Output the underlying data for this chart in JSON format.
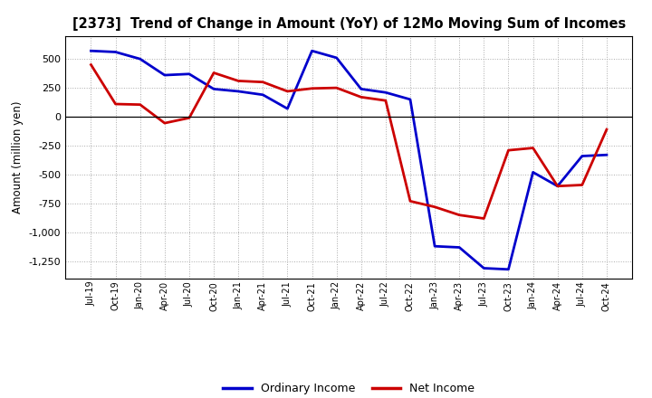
{
  "title": "[2373]  Trend of Change in Amount (YoY) of 12Mo Moving Sum of Incomes",
  "ylabel": "Amount (million yen)",
  "background_color": "#ffffff",
  "grid_color": "#aaaaaa",
  "x_labels": [
    "Jul-19",
    "Oct-19",
    "Jan-20",
    "Apr-20",
    "Jul-20",
    "Oct-20",
    "Jan-21",
    "Apr-21",
    "Jul-21",
    "Oct-21",
    "Jan-22",
    "Apr-22",
    "Jul-22",
    "Oct-22",
    "Jan-23",
    "Apr-23",
    "Jul-23",
    "Oct-23",
    "Jan-24",
    "Apr-24",
    "Jul-24",
    "Oct-24"
  ],
  "ordinary_income": [
    570,
    560,
    500,
    360,
    370,
    240,
    220,
    190,
    70,
    570,
    510,
    240,
    210,
    150,
    -1120,
    -1130,
    -1310,
    -1320,
    -480,
    -600,
    -340,
    -330
  ],
  "net_income": [
    450,
    110,
    105,
    -55,
    -10,
    380,
    310,
    300,
    220,
    245,
    250,
    170,
    140,
    -730,
    -780,
    -850,
    -880,
    -290,
    -270,
    -600,
    -590,
    -110
  ],
  "ordinary_income_color": "#0000cc",
  "net_income_color": "#cc0000",
  "ylim": [
    -1400,
    700
  ],
  "yticks": [
    -1250,
    -1000,
    -750,
    -500,
    -250,
    0,
    250,
    500
  ],
  "legend_labels": [
    "Ordinary Income",
    "Net Income"
  ],
  "line_width": 2.0
}
